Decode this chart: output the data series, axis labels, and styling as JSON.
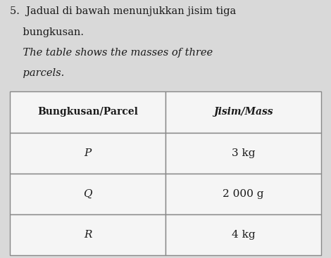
{
  "title_line1": "5.  Jadual di bawah menunjukkan jisim tiga",
  "title_line2": "    bungkusan.",
  "subtitle_line1": "    The table shows the masses of three",
  "subtitle_line2": "    parcels.",
  "header_col1": "Bungkusan/Parcel",
  "header_col2": "Jisim/Mass",
  "rows": [
    [
      "P",
      "3 kg"
    ],
    [
      "Q",
      "2 000 g"
    ],
    [
      "R",
      "4 kg"
    ]
  ],
  "bg_color": "#d9d9d9",
  "cell_bg": "#f5f5f5",
  "header_bg": "#f5f5f5",
  "text_color": "#1a1a1a",
  "border_color": "#888888",
  "col_split": 0.5
}
